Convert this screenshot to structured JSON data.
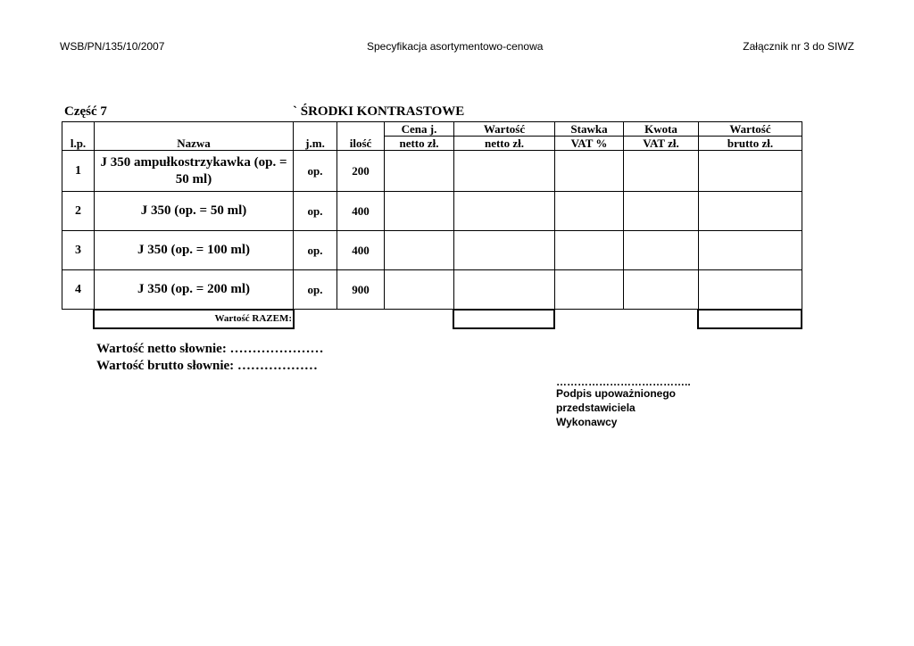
{
  "header": {
    "left": "WSB/PN/135/10/2007",
    "center": "Specyfikacja asortymentowo-cenowa",
    "right": "Załącznik nr 3 do SIWZ"
  },
  "section": {
    "part": "Część 7",
    "title": "` ŚRODKI KONTRASTOWE"
  },
  "table": {
    "headers": {
      "lp": "l.p.",
      "name": "Nazwa",
      "unit": "j.m.",
      "qty": "ilość",
      "price_top": "Cena j.",
      "price_bottom": "netto zł.",
      "net_top": "Wartość",
      "net_bottom": "netto zł.",
      "vat_rate_top": "Stawka",
      "vat_rate_bottom": "VAT %",
      "vat_amount_top": "Kwota",
      "vat_amount_bottom": "VAT zł.",
      "gross_top": "Wartość",
      "gross_bottom": "brutto zł."
    },
    "rows": [
      {
        "lp": "1",
        "name": "J 350 ampułkostrzykawka (op. = 50 ml)",
        "unit": "op.",
        "qty": "200"
      },
      {
        "lp": "2",
        "name": "J 350 (op. = 50 ml)",
        "unit": "op.",
        "qty": "400"
      },
      {
        "lp": "3",
        "name": "J 350 (op. = 100 ml)",
        "unit": "op.",
        "qty": "400"
      },
      {
        "lp": "4",
        "name": "J 350 (op. = 200 ml)",
        "unit": "op.",
        "qty": "900"
      }
    ],
    "total_label": "Wartość RAZEM:"
  },
  "footer": {
    "net_words": "Wartość netto słownie: …………………",
    "gross_words": "Wartość brutto słownie: ………………",
    "signature_dots": "………………………………..",
    "signature_line1": "Podpis upoważnionego",
    "signature_line2": "przedstawiciela",
    "signature_line3": "Wykonawcy"
  }
}
